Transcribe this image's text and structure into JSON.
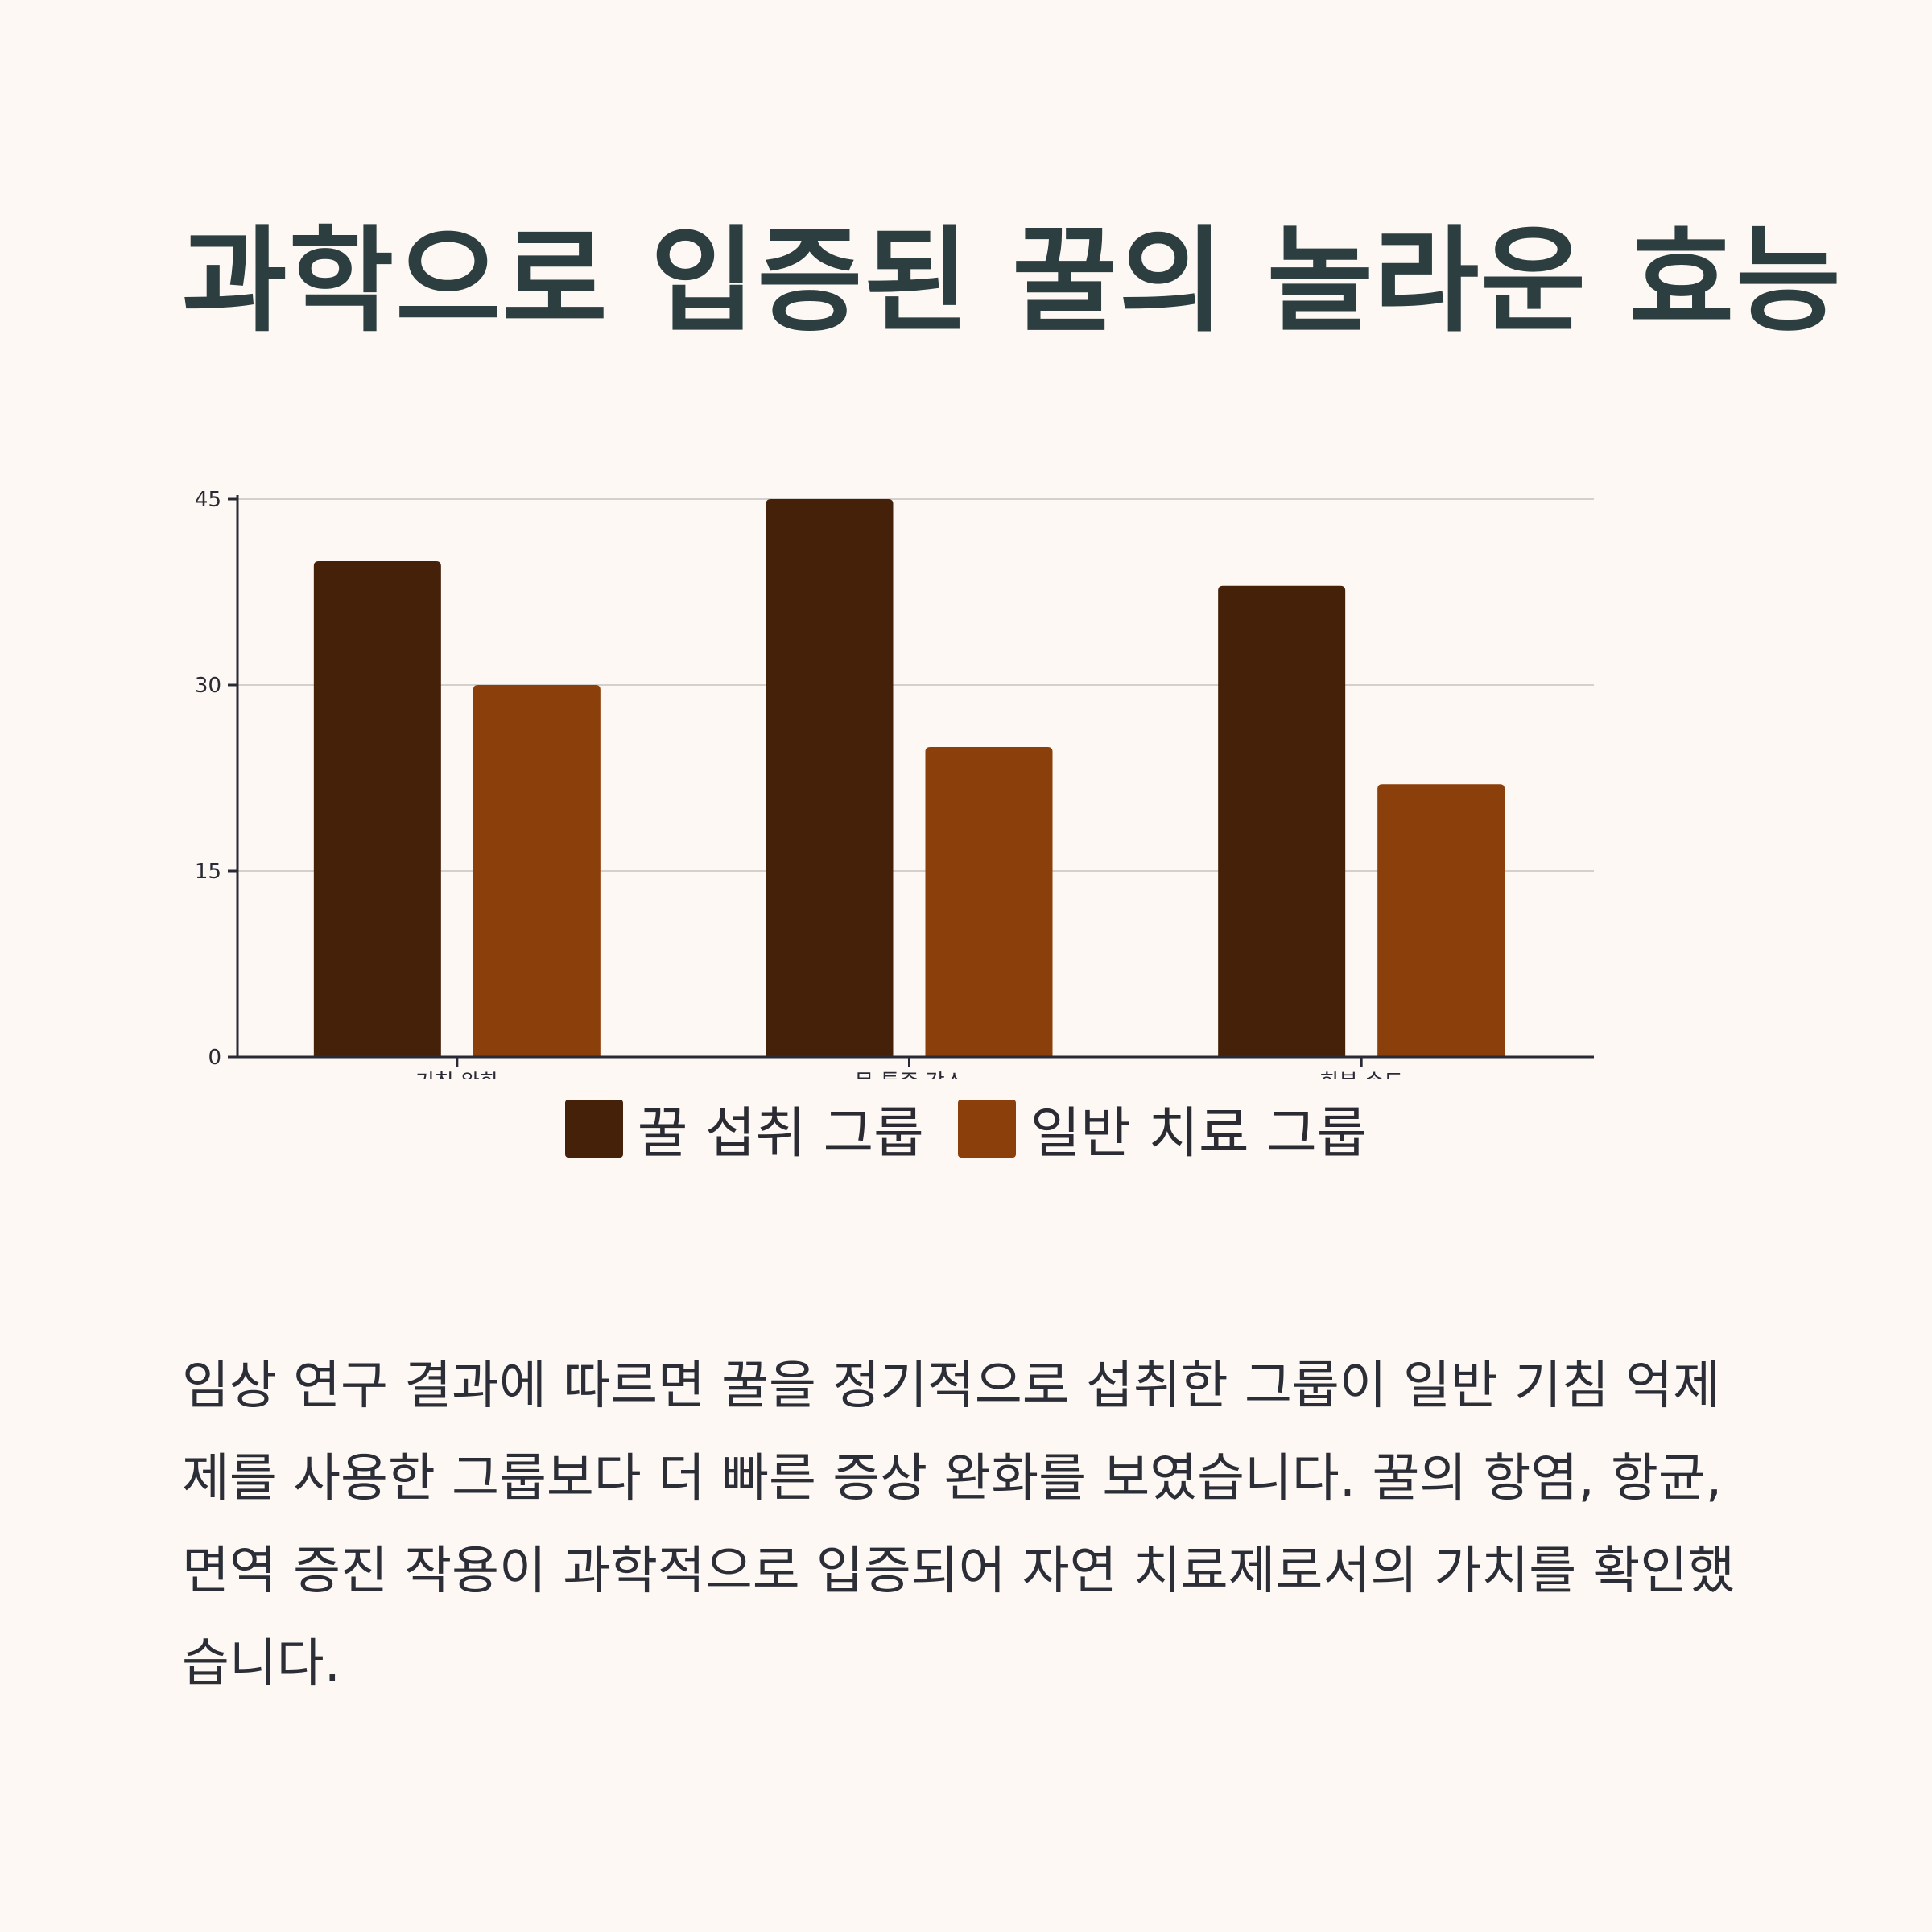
{
  "page": {
    "title": "과학으로 입증된 꿀의 놀라운 효능"
  },
  "colors": {
    "background": "#fdf8f3",
    "title": "#2c3e40",
    "series_honey": "#46210a",
    "series_standard": "#8b3f0b"
  },
  "chart_data": {
    "type": "bar",
    "categories": [
      "기침 완화",
      "목 통증 감소",
      "회복 속도"
    ],
    "series": [
      {
        "name": "꿀 섭취 그룹",
        "values": [
          40,
          45,
          38
        ],
        "color": "#46210a"
      },
      {
        "name": "일반 치료 그룹",
        "values": [
          30,
          25,
          22
        ],
        "color": "#8b3f0b"
      }
    ],
    "yticks": [
      "0",
      "15",
      "30",
      "45"
    ],
    "ylim": [
      0,
      45
    ],
    "grid": true,
    "legend_position": "bottom-center"
  },
  "description": "임상 연구 결과에 따르면 꿀을 정기적으로 섭취한 그룹이 일반 기침 억제제를 사용한 그룹보다 더 빠른 증상 완화를 보였습니다. 꿀의 항염, 항균, 면역 증진 작용이 과학적으로 입증되어 자연 치료제로서의 가치를 확인했습니다."
}
